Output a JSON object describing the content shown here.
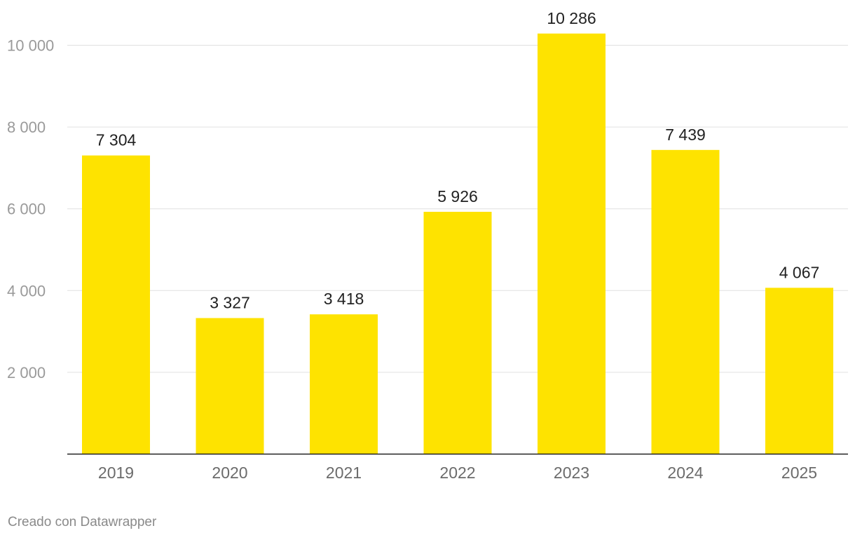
{
  "chart_data": {
    "type": "bar",
    "categories": [
      "2019",
      "2020",
      "2021",
      "2022",
      "2023",
      "2024",
      "2025"
    ],
    "values": [
      7304,
      3327,
      3418,
      5926,
      10286,
      7439,
      4067
    ],
    "value_labels": [
      "7 304",
      "3 327",
      "3 418",
      "5 926",
      "10 286",
      "7 439",
      "4 067"
    ],
    "title": "",
    "xlabel": "",
    "ylabel": "",
    "ylim": [
      0,
      10500
    ],
    "yticks": [
      2000,
      4000,
      6000,
      8000,
      10000
    ],
    "ytick_labels": [
      "2 000",
      "4 000",
      "6 000",
      "8 000",
      "10 000"
    ],
    "grid": true,
    "bar_color": "#fee300"
  },
  "footer": {
    "credit": "Creado con Datawrapper"
  }
}
